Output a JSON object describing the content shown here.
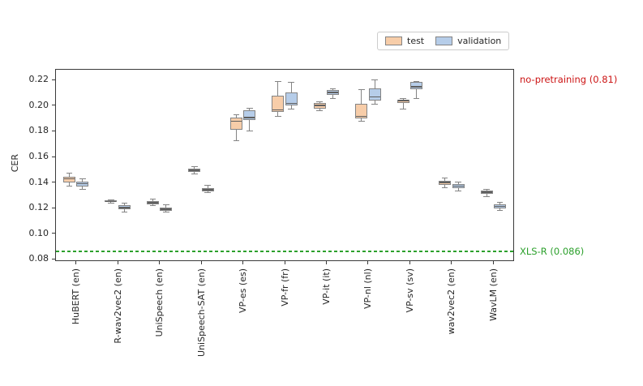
{
  "chart_data": {
    "type": "boxplot",
    "title": "",
    "ylabel": "CER",
    "xlabel": "",
    "ylim": [
      0.0784,
      0.2284
    ],
    "yticks": [
      0.08,
      0.1,
      0.12,
      0.14,
      0.16,
      0.18,
      0.2,
      0.22
    ],
    "grid": false,
    "legend_position": "upper-right-outside",
    "categories": [
      "HuBERT (en)",
      "R-wav2vec2 (en)",
      "UniSpeech (en)",
      "UniSpeech-SAT (en)",
      "VP-es (es)",
      "VP-fr (fr)",
      "VP-it (it)",
      "VP-nl (nl)",
      "VP-sv (sv)",
      "wav2vec2 (en)",
      "WavLM (en)"
    ],
    "series": [
      {
        "name": "test",
        "color": "#f7cda9",
        "edge_color": "#848484",
        "boxes": [
          {
            "whislo": 0.137,
            "q1": 0.14,
            "med": 0.1425,
            "q3": 0.1445,
            "whishi": 0.147
          },
          {
            "whislo": 0.1235,
            "q1": 0.1243,
            "med": 0.125,
            "q3": 0.1257,
            "whishi": 0.1263
          },
          {
            "whislo": 0.1215,
            "q1": 0.1227,
            "med": 0.124,
            "q3": 0.1252,
            "whishi": 0.127
          },
          {
            "whislo": 0.1465,
            "q1": 0.148,
            "med": 0.1493,
            "q3": 0.1507,
            "whishi": 0.152
          },
          {
            "whislo": 0.1725,
            "q1": 0.181,
            "med": 0.1877,
            "q3": 0.1902,
            "whishi": 0.1925
          },
          {
            "whislo": 0.1915,
            "q1": 0.1947,
            "med": 0.1963,
            "q3": 0.2077,
            "whishi": 0.2188
          },
          {
            "whislo": 0.1955,
            "q1": 0.1972,
            "med": 0.2,
            "q3": 0.2017,
            "whishi": 0.2027
          },
          {
            "whislo": 0.1877,
            "q1": 0.1898,
            "med": 0.1915,
            "q3": 0.2014,
            "whishi": 0.212
          },
          {
            "whislo": 0.1968,
            "q1": 0.2017,
            "med": 0.2036,
            "q3": 0.2046,
            "whishi": 0.2055
          },
          {
            "whislo": 0.1356,
            "q1": 0.1377,
            "med": 0.1398,
            "q3": 0.1412,
            "whishi": 0.1435
          },
          {
            "whislo": 0.1288,
            "q1": 0.1307,
            "med": 0.1322,
            "q3": 0.1335,
            "whishi": 0.1341
          }
        ]
      },
      {
        "name": "validation",
        "color": "#b6cde9",
        "edge_color": "#848484",
        "boxes": [
          {
            "whislo": 0.1345,
            "q1": 0.1366,
            "med": 0.1388,
            "q3": 0.1405,
            "whishi": 0.1425
          },
          {
            "whislo": 0.117,
            "q1": 0.1187,
            "med": 0.1203,
            "q3": 0.1219,
            "whishi": 0.1234
          },
          {
            "whislo": 0.1165,
            "q1": 0.1177,
            "med": 0.119,
            "q3": 0.1204,
            "whishi": 0.1224
          },
          {
            "whislo": 0.1316,
            "q1": 0.133,
            "med": 0.1342,
            "q3": 0.1356,
            "whishi": 0.1374
          },
          {
            "whislo": 0.1801,
            "q1": 0.1886,
            "med": 0.1905,
            "q3": 0.1961,
            "whishi": 0.1974
          },
          {
            "whislo": 0.1968,
            "q1": 0.2,
            "med": 0.2014,
            "q3": 0.2098,
            "whishi": 0.2182
          },
          {
            "whislo": 0.2056,
            "q1": 0.2083,
            "med": 0.21,
            "q3": 0.2119,
            "whishi": 0.2127
          },
          {
            "whislo": 0.201,
            "q1": 0.2036,
            "med": 0.2066,
            "q3": 0.213,
            "whishi": 0.2197
          },
          {
            "whislo": 0.2052,
            "q1": 0.2124,
            "med": 0.2146,
            "q3": 0.2183,
            "whishi": 0.2183
          },
          {
            "whislo": 0.133,
            "q1": 0.1352,
            "med": 0.1371,
            "q3": 0.1387,
            "whishi": 0.1402
          },
          {
            "whislo": 0.118,
            "q1": 0.1196,
            "med": 0.1211,
            "q3": 0.1226,
            "whishi": 0.124
          }
        ]
      }
    ],
    "reference_lines": [
      {
        "label": "XLS-R (0.086)",
        "value": 0.086,
        "color": "#2ca02c",
        "style": "dashed"
      }
    ],
    "annotations": {
      "no_pretraining": {
        "text": "no-pretraining (0.81)",
        "color": "#cc1414"
      },
      "xlsr": {
        "text": "XLS-R (0.086)",
        "color": "#2ca02c"
      }
    },
    "colors": {
      "test_fill": "#f7cda9",
      "validation_fill": "#b6cde9",
      "box_edge": "#848484",
      "median_line": "#5f5f5f",
      "spine": "#3a3a3a"
    }
  }
}
